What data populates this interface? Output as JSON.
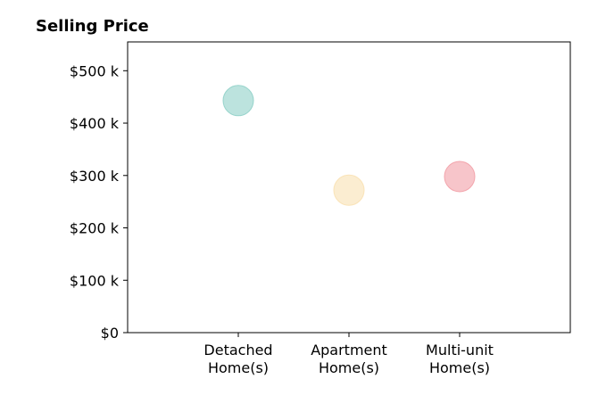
{
  "chart_data": {
    "type": "scatter",
    "title": "Selling Price",
    "xlabel": "",
    "ylabel": "",
    "categories": [
      [
        "Detached",
        "Home(s)"
      ],
      [
        "Apartment",
        "Home(s)"
      ],
      [
        "Multi-unit",
        "Home(s)"
      ]
    ],
    "values": [
      443000,
      272000,
      298000
    ],
    "colors": [
      "#8fd0c8",
      "#f9e1b2",
      "#f29ea6"
    ],
    "point_opacity": 0.6,
    "ylim": [
      0,
      555000
    ],
    "xlim": [
      0,
      4
    ],
    "yticks": [
      {
        "value": 0,
        "label": "$0"
      },
      {
        "value": 100000,
        "label": "$100 k"
      },
      {
        "value": 200000,
        "label": "$200 k"
      },
      {
        "value": 300000,
        "label": "$300 k"
      },
      {
        "value": 400000,
        "label": "$400 k"
      },
      {
        "value": 500000,
        "label": "$500 k"
      }
    ],
    "grid": false,
    "legend": "none"
  }
}
